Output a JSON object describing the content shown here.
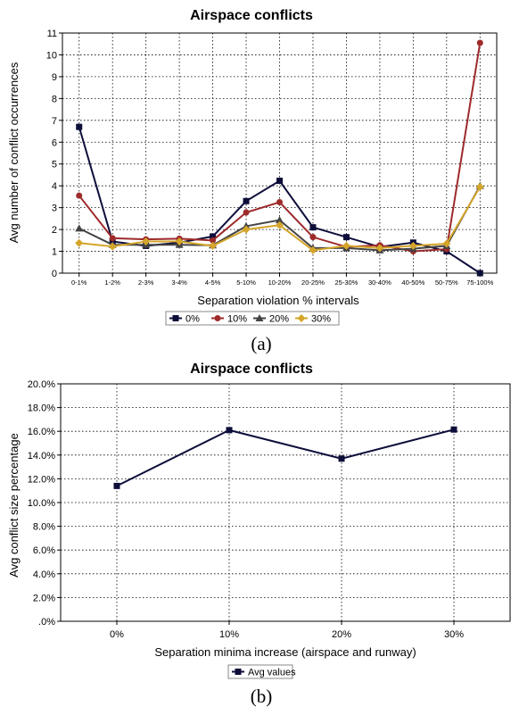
{
  "chart_data": [
    {
      "type": "line",
      "title": "Airspace conflicts",
      "xlabel": "Separation violation % intervals",
      "ylabel": "Avg number of conflict occurrences",
      "categories": [
        "0-1%",
        "1-2%",
        "2-3%",
        "3-4%",
        "4-5%",
        "5-10%",
        "10-20%",
        "20-25%",
        "25-30%",
        "30-40%",
        "40-50%",
        "50-75%",
        "75-100%"
      ],
      "ylim": [
        0,
        11
      ],
      "yticks": [
        "0",
        "1",
        "2",
        "3",
        "4",
        "5",
        "6",
        "7",
        "8",
        "9",
        "10",
        "11"
      ],
      "grid": true,
      "legend_position": "bottom",
      "series": [
        {
          "name": "0%",
          "color": "#0d0d3a",
          "marker": "square",
          "values": [
            6.7,
            1.45,
            1.25,
            1.4,
            1.68,
            3.3,
            4.23,
            2.1,
            1.65,
            1.2,
            1.4,
            1.0,
            0.0
          ]
        },
        {
          "name": "10%",
          "color": "#9e2a2b",
          "marker": "circle",
          "values": [
            3.55,
            1.6,
            1.55,
            1.58,
            1.5,
            2.78,
            3.25,
            1.65,
            1.2,
            1.28,
            1.0,
            1.1,
            10.55
          ]
        },
        {
          "name": "20%",
          "color": "#444444",
          "marker": "triangle",
          "values": [
            2.05,
            1.3,
            1.3,
            1.3,
            1.28,
            2.15,
            2.43,
            1.15,
            1.15,
            1.05,
            1.12,
            1.25,
            4.0
          ]
        },
        {
          "name": "30%",
          "color": "#d4a52a",
          "marker": "diamond",
          "values": [
            1.38,
            1.22,
            1.45,
            1.45,
            1.25,
            2.0,
            2.2,
            1.05,
            1.25,
            1.15,
            1.25,
            1.35,
            3.95
          ]
        }
      ],
      "caption": "(a)"
    },
    {
      "type": "line",
      "title": "Airspace conflicts",
      "xlabel": "Separation minima increase (airspace and runway)",
      "ylabel": "Avg conflict size percentage",
      "categories": [
        "0%",
        "10%",
        "20%",
        "30%"
      ],
      "ylim": [
        0,
        20
      ],
      "yticks": [
        ".0%",
        "2.0%",
        "4.0%",
        "6.0%",
        "8.0%",
        "10.0%",
        "12.0%",
        "14.0%",
        "16.0%",
        "18.0%",
        "20.0%"
      ],
      "grid": true,
      "legend_position": "bottom",
      "series": [
        {
          "name": "Avg values",
          "color": "#0d0d3a",
          "marker": "square",
          "values": [
            11.4,
            16.1,
            13.7,
            16.15
          ]
        }
      ],
      "caption": "(b)"
    }
  ]
}
